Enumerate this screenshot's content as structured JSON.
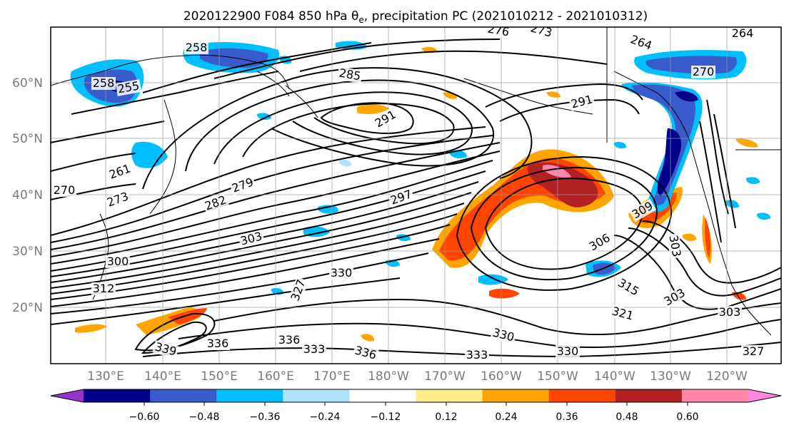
{
  "title": "2020122900 F084 850 hPa θ",
  "title_sub": "e",
  "title_tail": ", precipitation PC (2021010212 - 2021010312)",
  "lat_labels": [
    "60°N",
    "50°N",
    "40°N",
    "30°N",
    "20°N"
  ],
  "lon_labels": [
    "130°E",
    "140°E",
    "150°E",
    "160°E",
    "170°E",
    "180°W",
    "170°W",
    "160°W",
    "150°W",
    "140°W",
    "130°W",
    "120°W"
  ],
  "colorbar": {
    "colors": [
      "#9932cc",
      "#00008b",
      "#3a5bcc",
      "#00bfff",
      "#b0e2ff",
      "#ffffff",
      "#ffec8b",
      "#ffa500",
      "#ff4500",
      "#b22222",
      "#ff88aa",
      "#ff88dd"
    ],
    "ticks": [
      "−0.60",
      "−0.48",
      "−0.36",
      "−0.24",
      "−0.12",
      "0.12",
      "0.24",
      "0.36",
      "0.48",
      "0.60"
    ]
  },
  "contour_labels": [
    "258",
    "255",
    "258",
    "261",
    "276",
    "273",
    "264",
    "264",
    "270",
    "285",
    "291",
    "291",
    "297",
    "279",
    "282",
    "273",
    "270",
    "303",
    "300",
    "330",
    "327",
    "312",
    "336",
    "339",
    "336",
    "333",
    "336",
    "330",
    "333",
    "330",
    "321",
    "315",
    "303",
    "303",
    "306",
    "309",
    "303",
    "327"
  ]
}
